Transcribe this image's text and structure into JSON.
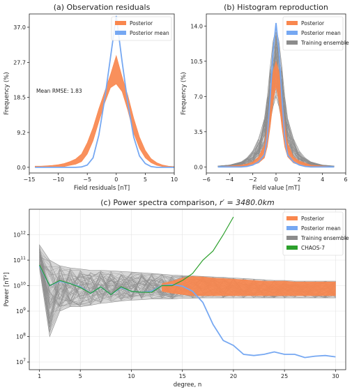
{
  "chart_data": [
    {
      "type": "line",
      "title": "(a) Observation residuals",
      "xlabel": "Field residuals [nT]",
      "ylabel": "Frequency (%)",
      "xlim": [
        -15,
        10
      ],
      "ylim": [
        -1.5,
        40.5
      ],
      "xticks": [
        "−15",
        "−10",
        "−5",
        "0",
        "5",
        "10"
      ],
      "xtick_values": [
        -15,
        -10,
        -5,
        0,
        5,
        10
      ],
      "yticks": [
        "0.0",
        "9.2",
        "18.5",
        "27.7",
        "37.0"
      ],
      "ytick_values": [
        0,
        9.2,
        18.5,
        27.7,
        37.0
      ],
      "annotation": "Mean RMSE: 1.83",
      "legend": {
        "loc": "upper-right",
        "entries": [
          {
            "label": "Posterior",
            "color": "#f9874e"
          },
          {
            "label": "Posterior mean",
            "color": "#76a8f2"
          }
        ]
      },
      "x": [
        -14,
        -13,
        -12,
        -11,
        -10,
        -9,
        -8,
        -7,
        -6,
        -5,
        -4,
        -3,
        -2,
        -1,
        0,
        1,
        2,
        3,
        4,
        5,
        6,
        7,
        8,
        9,
        10
      ],
      "series": [
        {
          "name": "Posterior",
          "kind": "band",
          "color": "#f9874e",
          "lower": [
            0,
            0,
            0,
            0,
            0,
            0.2,
            0.5,
            0.8,
            1.5,
            3.5,
            7,
            12,
            17,
            21,
            22,
            20,
            15,
            9,
            5,
            2.5,
            1.2,
            0.5,
            0.2,
            0,
            0
          ],
          "upper": [
            0.3,
            0.3,
            0.4,
            0.5,
            0.7,
            1.0,
            1.5,
            2.2,
            3.5,
            6.5,
            10.5,
            15.5,
            20,
            24.5,
            29.5,
            24,
            19,
            13,
            8,
            4.5,
            2.3,
            1.2,
            0.6,
            0.3,
            0.2
          ]
        },
        {
          "name": "Posterior mean",
          "kind": "line",
          "color": "#76a8f2",
          "values": [
            0,
            0,
            0,
            0,
            0,
            0,
            0,
            0,
            0.1,
            0.6,
            2.5,
            8.5,
            18,
            29,
            40,
            28,
            17,
            8,
            3,
            1,
            0.2,
            0,
            0,
            0,
            0
          ]
        }
      ]
    },
    {
      "type": "line",
      "title": "(b) Histogram reproduction",
      "xlabel": "Field value [mT]",
      "ylabel": "Frequency (%)",
      "xlim": [
        -6,
        6
      ],
      "ylim": [
        -0.6,
        15.2
      ],
      "xticks": [
        "−6",
        "−4",
        "−2",
        "0",
        "2",
        "4",
        "6"
      ],
      "xtick_values": [
        -6,
        -4,
        -2,
        0,
        2,
        4,
        6
      ],
      "yticks": [
        "0.0",
        "3.5",
        "7.0",
        "10.5",
        "14.0"
      ],
      "ytick_values": [
        0,
        3.5,
        7.0,
        10.5,
        14.0
      ],
      "legend": {
        "loc": "upper-right",
        "entries": [
          {
            "label": "Posterior",
            "color": "#f9874e"
          },
          {
            "label": "Posterior mean",
            "color": "#76a8f2"
          },
          {
            "label": "Training ensemble",
            "color": "#8c8c8c"
          }
        ]
      },
      "x": [
        -5,
        -4,
        -3,
        -2.5,
        -2,
        -1.5,
        -1,
        -0.75,
        -0.5,
        -0.25,
        0,
        0.25,
        0.5,
        0.75,
        1,
        1.5,
        2,
        2.5,
        3,
        4,
        5
      ],
      "series": [
        {
          "name": "Training ensemble",
          "kind": "band",
          "color": "#8c8c8c",
          "lower": [
            0,
            0,
            0.1,
            0.2,
            0.4,
            0.9,
            1.6,
            3,
            4.5,
            6,
            7,
            6,
            4.5,
            3,
            1.7,
            0.9,
            0.4,
            0.2,
            0.1,
            0,
            0
          ],
          "upper": [
            0.1,
            0.2,
            0.5,
            0.9,
            1.6,
            2.8,
            4.8,
            7,
            10,
            12.5,
            13.8,
            12.5,
            10,
            7,
            4.8,
            2.8,
            1.6,
            0.9,
            0.5,
            0.2,
            0.1
          ]
        },
        {
          "name": "Posterior",
          "kind": "band",
          "color": "#f9874e",
          "lower": [
            0,
            0,
            0,
            0.1,
            0.2,
            0.4,
            0.9,
            2,
            4,
            6.5,
            8,
            6.5,
            4,
            2,
            1,
            0.4,
            0.2,
            0.1,
            0,
            0,
            0
          ],
          "upper": [
            0,
            0.1,
            0.2,
            0.3,
            0.5,
            1.0,
            2.2,
            4,
            7,
            9.5,
            10.5,
            9.5,
            7,
            4.3,
            2.4,
            1.0,
            0.6,
            0.4,
            0.2,
            0.1,
            0
          ]
        },
        {
          "name": "Posterior mean",
          "kind": "line",
          "color": "#76a8f2",
          "values": [
            0,
            0,
            0,
            0.05,
            0.2,
            0.5,
            1.2,
            3,
            7,
            11.5,
            14.3,
            11.5,
            7,
            3,
            1.2,
            0.5,
            0.2,
            0.05,
            0,
            0,
            0
          ]
        }
      ]
    },
    {
      "type": "line",
      "title": "(c) Power spectra comparison, ",
      "title_math": "r′ = 3480.0km",
      "xlabel": "degree, n",
      "ylabel": "Power [nT²]",
      "yscale": "log",
      "xlim": [
        0,
        31
      ],
      "ylim": [
        5000000.0,
        10000000000000.0
      ],
      "xticks": [
        "1",
        "5",
        "10",
        "15",
        "20",
        "25",
        "30"
      ],
      "xtick_values": [
        1,
        5,
        10,
        15,
        20,
        25,
        30
      ],
      "ytick_exponents": [
        7,
        8,
        9,
        10,
        11,
        12
      ],
      "grid": true,
      "legend": {
        "loc": "upper-right",
        "entries": [
          {
            "label": "Posterior",
            "color": "#f9874e"
          },
          {
            "label": "Posterior mean",
            "color": "#76a8f2"
          },
          {
            "label": "Training ensemble",
            "color": "#8c8c8c"
          },
          {
            "label": "CHAOS-7",
            "color": "#2ca02c"
          }
        ]
      },
      "x": [
        1,
        2,
        3,
        4,
        5,
        6,
        7,
        8,
        9,
        10,
        11,
        12,
        13,
        14,
        15,
        16,
        17,
        18,
        19,
        20,
        21,
        22,
        23,
        24,
        25,
        26,
        27,
        28,
        29,
        30
      ],
      "series": [
        {
          "name": "Training ensemble",
          "kind": "band",
          "color": "#8c8c8c",
          "lower": [
            50000000000.0,
            100000000.0,
            1000000000.0,
            1500000000.0,
            1500000000.0,
            1700000000.0,
            2000000000.0,
            2200000000.0,
            2500000000.0,
            2700000000.0,
            2800000000.0,
            3000000000.0,
            3000000000.0,
            3000000000.0,
            3200000000.0,
            3200000000.0,
            3300000000.0,
            3300000000.0,
            3300000000.0,
            3300000000.0,
            3300000000.0,
            3300000000.0,
            3300000000.0,
            3300000000.0,
            3300000000.0,
            3300000000.0,
            3300000000.0,
            3300000000.0,
            3300000000.0,
            3300000000.0
          ],
          "upper": [
            400000000000.0,
            100000000000.0,
            60000000000.0,
            50000000000.0,
            45000000000.0,
            40000000000.0,
            40000000000.0,
            38000000000.0,
            36000000000.0,
            34000000000.0,
            32000000000.0,
            30000000000.0,
            28000000000.0,
            26000000000.0,
            25000000000.0,
            24000000000.0,
            23000000000.0,
            22000000000.0,
            21000000000.0,
            20000000000.0,
            19000000000.0,
            18000000000.0,
            17000000000.0,
            16000000000.0,
            16000000000.0,
            15000000000.0,
            15000000000.0,
            15000000000.0,
            15000000000.0,
            15000000000.0
          ]
        },
        {
          "name": "Posterior",
          "kind": "band",
          "color": "#f9874e",
          "lower": [
            null,
            null,
            null,
            null,
            null,
            null,
            null,
            null,
            null,
            null,
            null,
            null,
            6000000000.0,
            5000000000.0,
            4500000000.0,
            4000000000.0,
            4000000000.0,
            4000000000.0,
            4000000000.0,
            4000000000.0,
            4000000000.0,
            4000000000.0,
            4000000000.0,
            4000000000.0,
            4000000000.0,
            4000000000.0,
            4000000000.0,
            4000000000.0,
            4000000000.0,
            4000000000.0
          ],
          "upper": [
            null,
            null,
            null,
            null,
            null,
            null,
            null,
            null,
            null,
            null,
            null,
            null,
            12000000000.0,
            15000000000.0,
            20000000000.0,
            23000000000.0,
            22000000000.0,
            20000000000.0,
            19000000000.0,
            18000000000.0,
            17000000000.0,
            16000000000.0,
            15000000000.0,
            15000000000.0,
            15000000000.0,
            14000000000.0,
            14000000000.0,
            14000000000.0,
            14000000000.0,
            14000000000.0
          ]
        },
        {
          "name": "Posterior mean",
          "kind": "line",
          "color": "#76a8f2",
          "values": [
            60000000000.0,
            10000000000.0,
            15000000000.0,
            12000000000.0,
            9000000000.0,
            5000000000.0,
            9000000000.0,
            4500000000.0,
            8500000000.0,
            6000000000.0,
            5500000000.0,
            6000000000.0,
            10000000000.0,
            11000000000.0,
            9500000000.0,
            6000000000.0,
            2200000000.0,
            300000000.0,
            70000000.0,
            45000000.0,
            20000000.0,
            18000000.0,
            20000000.0,
            25000000.0,
            20000000.0,
            20000000.0,
            15000000.0,
            17000000.0,
            18000000.0,
            16000000.0
          ]
        },
        {
          "name": "CHAOS-7",
          "kind": "line",
          "color": "#2ca02c",
          "values": [
            65000000000.0,
            10000000000.0,
            16000000000.0,
            12000000000.0,
            8500000000.0,
            5000000000.0,
            9000000000.0,
            4500000000.0,
            9000000000.0,
            6000000000.0,
            5500000000.0,
            5500000000.0,
            10000000000.0,
            10000000000.0,
            16000000000.0,
            30000000000.0,
            100000000000.0,
            230000000000.0,
            1000000000000.0,
            5000000000000.0,
            null,
            null,
            null,
            null,
            null,
            null,
            null,
            null,
            null,
            null
          ]
        }
      ]
    }
  ]
}
